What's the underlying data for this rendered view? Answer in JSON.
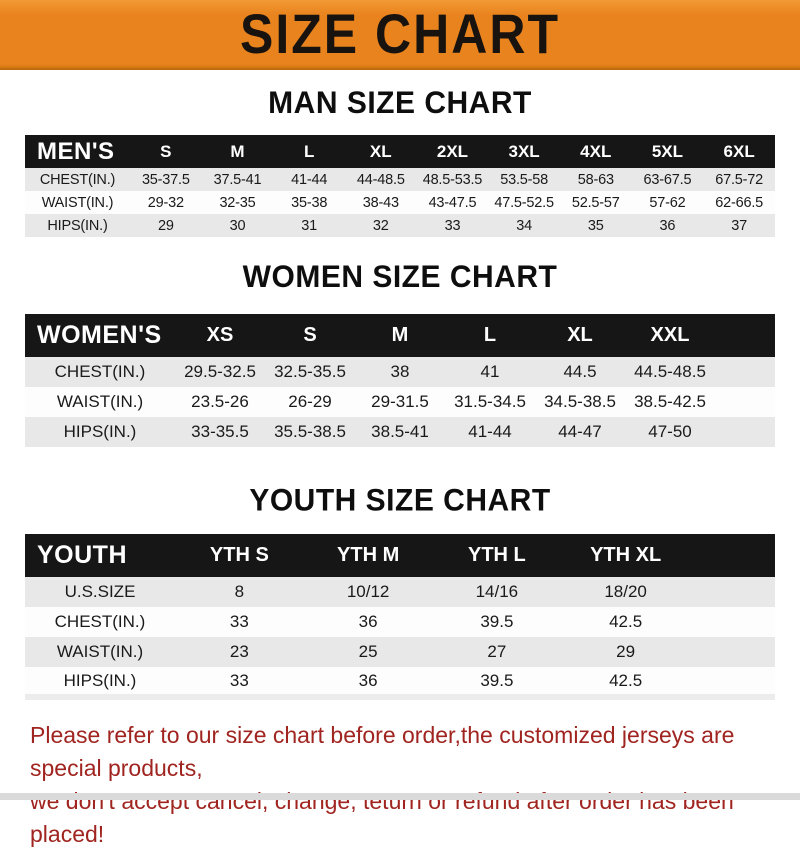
{
  "banner": {
    "title": "SIZE CHART"
  },
  "sections": [
    {
      "heading": "MAN SIZE CHART",
      "header_label": "MEN'S",
      "columns": [
        "S",
        "M",
        "L",
        "XL",
        "2XL",
        "3XL",
        "4XL",
        "5XL",
        "6XL"
      ],
      "rows": [
        {
          "label": "CHEST(IN.)",
          "values": [
            "35-37.5",
            "37.5-41",
            "41-44",
            "44-48.5",
            "48.5-53.5",
            "53.5-58",
            "58-63",
            "63-67.5",
            "67.5-72"
          ]
        },
        {
          "label": "WAIST(IN.)",
          "values": [
            "29-32",
            "32-35",
            "35-38",
            "38-43",
            "43-47.5",
            "47.5-52.5",
            "52.5-57",
            "57-62",
            "62-66.5"
          ]
        },
        {
          "label": "HIPS(IN.)",
          "values": [
            "29",
            "30",
            "31",
            "32",
            "33",
            "34",
            "35",
            "36",
            "37"
          ]
        }
      ]
    },
    {
      "heading": "WOMEN SIZE CHART",
      "header_label": "WOMEN'S",
      "columns": [
        "XS",
        "S",
        "M",
        "L",
        "XL",
        "XXL"
      ],
      "rows": [
        {
          "label": "CHEST(IN.)",
          "values": [
            "29.5-32.5",
            "32.5-35.5",
            "38",
            "41",
            "44.5",
            "44.5-48.5"
          ]
        },
        {
          "label": "WAIST(IN.)",
          "values": [
            "23.5-26",
            "26-29",
            "29-31.5",
            "31.5-34.5",
            "34.5-38.5",
            "38.5-42.5"
          ]
        },
        {
          "label": "HIPS(IN.)",
          "values": [
            "33-35.5",
            "35.5-38.5",
            "38.5-41",
            "41-44",
            "44-47",
            "47-50"
          ]
        }
      ]
    },
    {
      "heading": "YOUTH SIZE CHART",
      "header_label": "YOUTH",
      "columns": [
        "YTH S",
        "YTH M",
        "YTH L",
        "YTH XL"
      ],
      "rows": [
        {
          "label": "U.S.SIZE",
          "values": [
            "8",
            "10/12",
            "14/16",
            "18/20"
          ]
        },
        {
          "label": "CHEST(IN.)",
          "values": [
            "33",
            "36",
            "39.5",
            "42.5"
          ]
        },
        {
          "label": "WAIST(IN.)",
          "values": [
            "23",
            "25",
            "27",
            "29"
          ]
        },
        {
          "label": "HIPS(IN.)",
          "values": [
            "33",
            "36",
            "39.5",
            "42.5"
          ]
        }
      ]
    }
  ],
  "footer": {
    "line1": "Please refer to our size chart before order,the customized jerseys are special products,",
    "line2": "we don't accept cancel, change, teturn or refund after order has been placed!"
  },
  "colors": {
    "banner_orange": "#e9831d",
    "banner_title_black": "#191310",
    "header_bar_black": "#161616",
    "row_stripe_gray": "#e8e8e8",
    "footer_red": "#a0241f"
  }
}
